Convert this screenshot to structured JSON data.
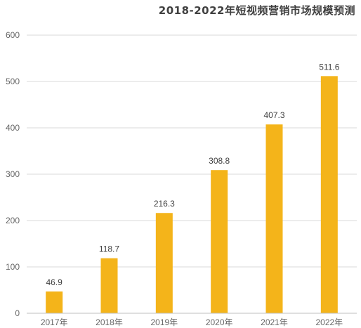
{
  "chart_data": {
    "type": "bar",
    "title": "2018-2022年短视频营销市场规模预测",
    "categories": [
      "2017年",
      "2018年",
      "2019年",
      "2020年",
      "2021年",
      "2022年"
    ],
    "values": [
      46.9,
      118.7,
      216.3,
      308.8,
      407.3,
      511.6
    ],
    "data_labels": [
      "46.9",
      "118.7",
      "216.3",
      "308.8",
      "407.3",
      "511.6"
    ],
    "yticks": [
      "0",
      "100",
      "200",
      "300",
      "400",
      "500",
      "600"
    ],
    "ylim": [
      0,
      600
    ],
    "xlabel": "",
    "ylabel": "",
    "grid": true,
    "legend": "none",
    "bar_color": "#f4b41a"
  }
}
